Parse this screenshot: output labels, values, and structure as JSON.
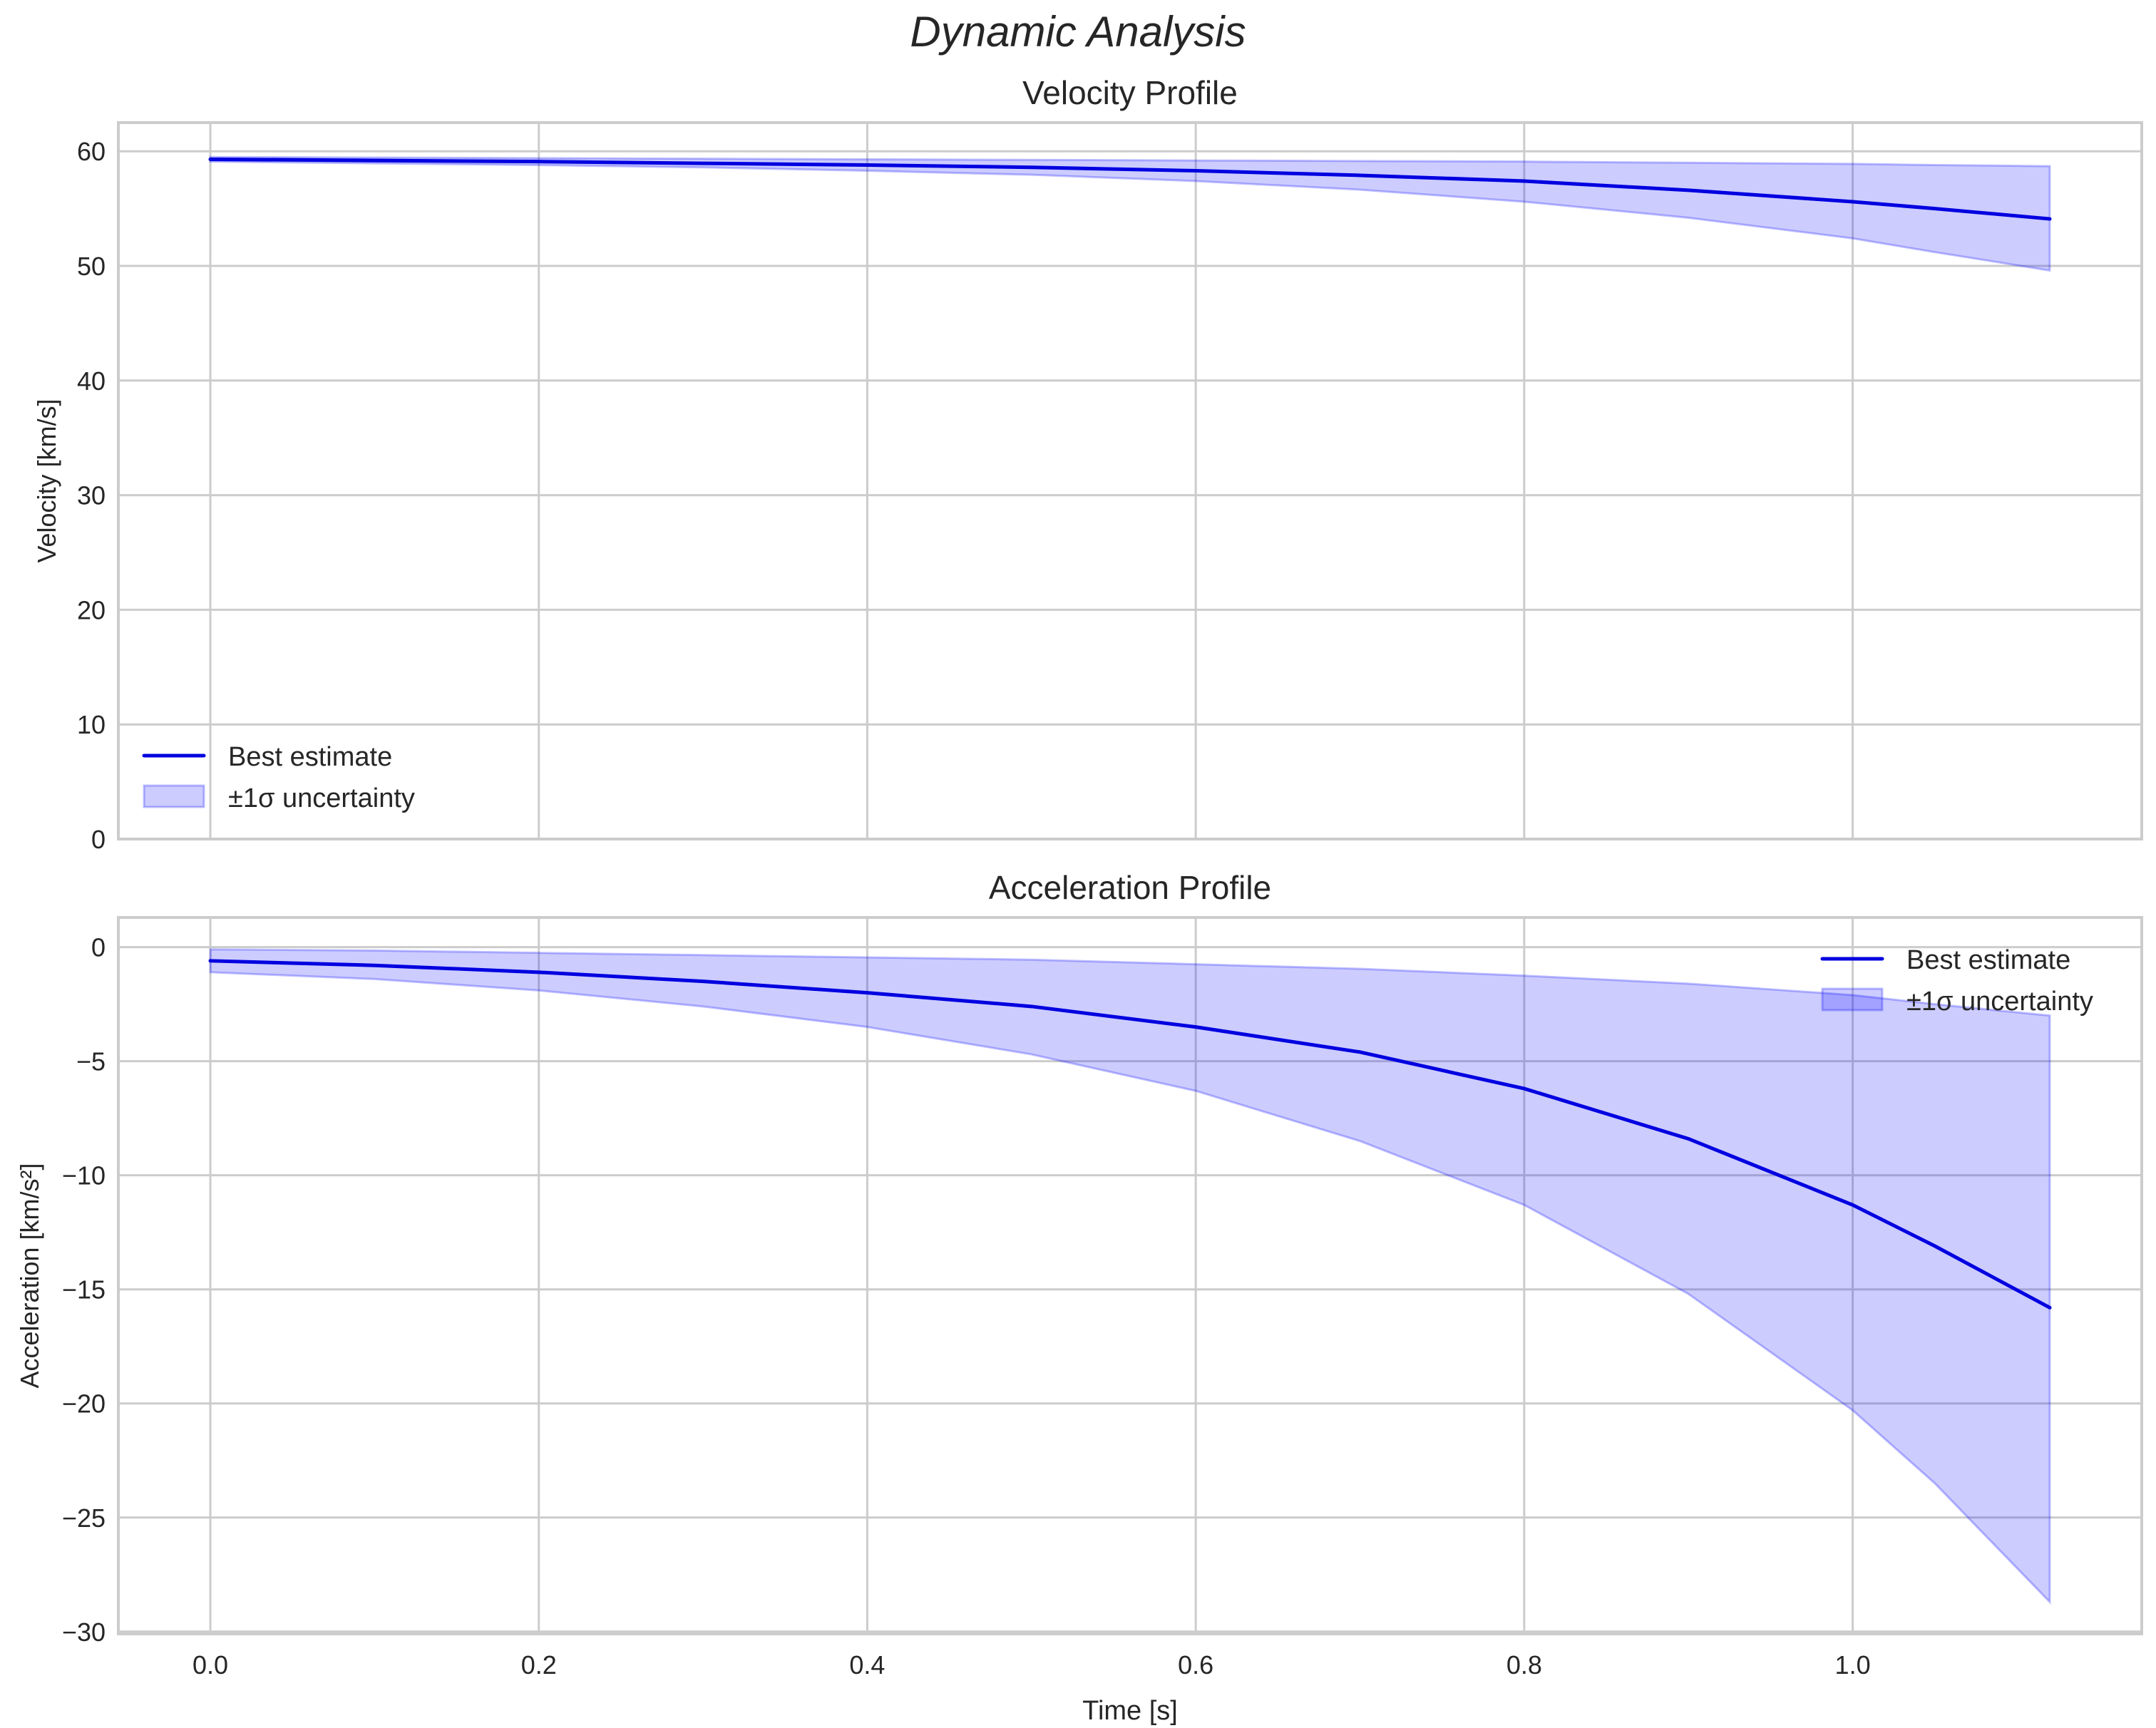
{
  "figure": {
    "suptitle": "Dynamic Analysis"
  },
  "colors": {
    "line": "#0000e0",
    "band": "#0000ff",
    "band_alpha": 0.2,
    "grid": "#cccccc",
    "text": "#262626"
  },
  "chart_data": [
    {
      "type": "line",
      "title": "Velocity Profile",
      "xlabel": "",
      "ylabel": "Velocity [km/s]",
      "xlim": [
        -0.056,
        1.176
      ],
      "ylim": [
        0,
        62.5
      ],
      "xticks": [
        0.0,
        0.2,
        0.4,
        0.6,
        0.8,
        1.0
      ],
      "yticks": [
        0,
        10,
        20,
        30,
        40,
        50,
        60
      ],
      "ytick_labels": [
        "0",
        "10",
        "20",
        "30",
        "40",
        "50",
        "60"
      ],
      "grid": true,
      "legend": {
        "position": "lower left",
        "entries": [
          "Best estimate",
          "±1σ uncertainty"
        ]
      },
      "x": [
        0.0,
        0.1,
        0.2,
        0.3,
        0.4,
        0.5,
        0.6,
        0.7,
        0.8,
        0.9,
        1.0,
        1.05,
        1.12
      ],
      "series": [
        {
          "name": "Best estimate",
          "values": [
            59.3,
            59.2,
            59.1,
            58.95,
            58.8,
            58.6,
            58.3,
            57.9,
            57.4,
            56.6,
            55.6,
            55.0,
            54.1
          ]
        },
        {
          "name": "±1σ upper",
          "values": [
            59.5,
            59.45,
            59.4,
            59.35,
            59.3,
            59.25,
            59.2,
            59.15,
            59.1,
            59.0,
            58.9,
            58.8,
            58.7
          ]
        },
        {
          "name": "±1σ lower",
          "values": [
            59.1,
            58.95,
            58.8,
            58.6,
            58.3,
            57.95,
            57.4,
            56.65,
            55.6,
            54.2,
            52.4,
            51.2,
            49.6
          ]
        }
      ]
    },
    {
      "type": "line",
      "title": "Acceleration Profile",
      "xlabel": "Time [s]",
      "ylabel": "Acceleration [km/s²]",
      "xlim": [
        -0.056,
        1.176
      ],
      "ylim": [
        -30.1,
        1.3
      ],
      "xticks": [
        0.0,
        0.2,
        0.4,
        0.6,
        0.8,
        1.0
      ],
      "xtick_labels": [
        "0.0",
        "0.2",
        "0.4",
        "0.6",
        "0.8",
        "1.0"
      ],
      "yticks": [
        0,
        -5,
        -10,
        -15,
        -20,
        -25,
        -30
      ],
      "ytick_labels": [
        "0",
        "−5",
        "−10",
        "−15",
        "−20",
        "−25",
        "−30"
      ],
      "grid": true,
      "legend": {
        "position": "upper right",
        "entries": [
          "Best estimate",
          "±1σ uncertainty"
        ]
      },
      "x": [
        0.0,
        0.1,
        0.2,
        0.3,
        0.4,
        0.5,
        0.6,
        0.7,
        0.8,
        0.9,
        1.0,
        1.05,
        1.12
      ],
      "series": [
        {
          "name": "Best estimate",
          "values": [
            -0.6,
            -0.8,
            -1.1,
            -1.5,
            -2.0,
            -2.6,
            -3.5,
            -4.6,
            -6.2,
            -8.4,
            -11.3,
            -13.1,
            -15.8
          ]
        },
        {
          "name": "±1σ upper",
          "values": [
            -0.1,
            -0.15,
            -0.25,
            -0.35,
            -0.45,
            -0.55,
            -0.75,
            -0.95,
            -1.25,
            -1.6,
            -2.1,
            -2.5,
            -3.0
          ]
        },
        {
          "name": "±1σ lower",
          "values": [
            -1.1,
            -1.4,
            -1.9,
            -2.6,
            -3.5,
            -4.7,
            -6.3,
            -8.5,
            -11.3,
            -15.2,
            -20.3,
            -23.5,
            -28.7
          ]
        }
      ]
    }
  ]
}
